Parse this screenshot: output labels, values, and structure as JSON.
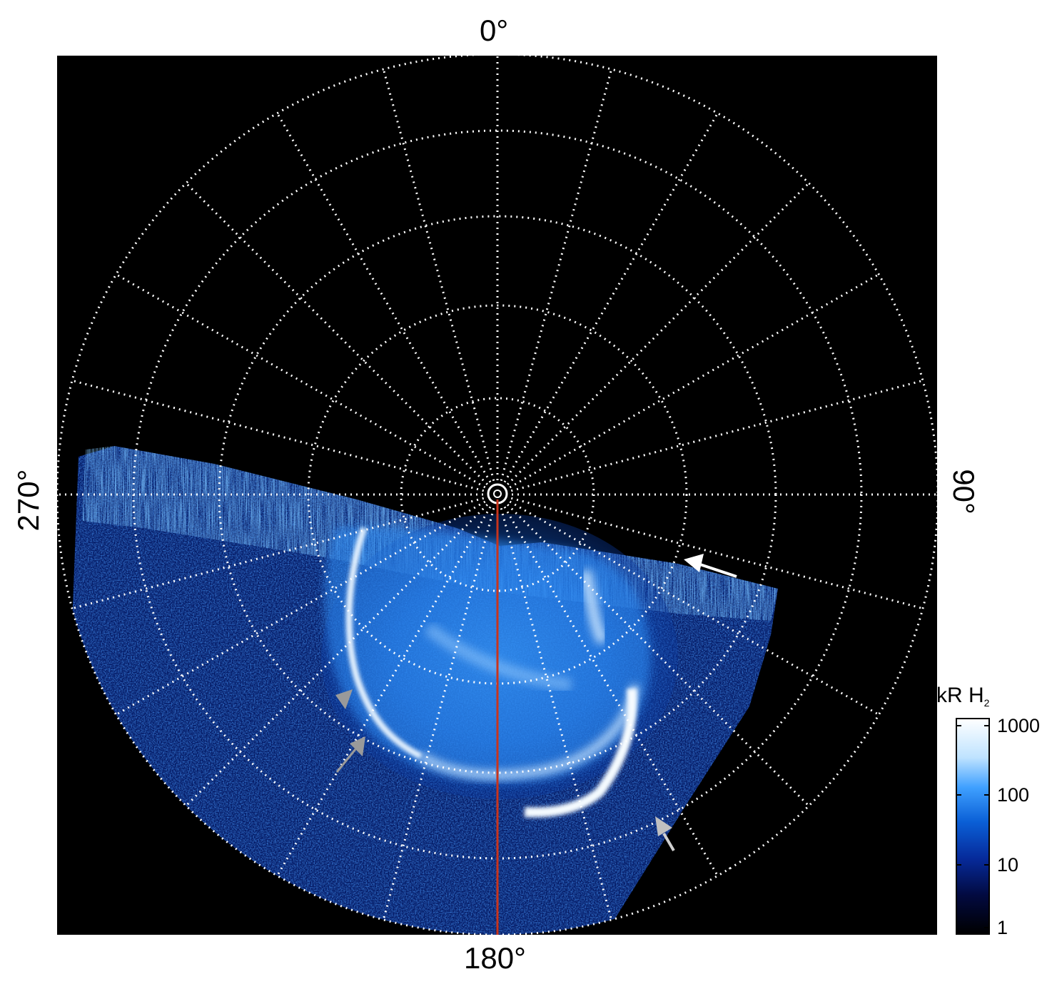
{
  "longitude_labels": {
    "top": "0°",
    "right": "90°",
    "bottom": "180°",
    "left": "270°"
  },
  "colorbar": {
    "title": "kR H",
    "title_subscript": "2",
    "scale": "log",
    "ticks": [
      "1000",
      "100",
      "10",
      "1"
    ],
    "colors": [
      "#ffffff",
      "#bfe3ff",
      "#3fa0ff",
      "#0a5fd6",
      "#062a9a",
      "#020a40",
      "#000000"
    ]
  },
  "colors": {
    "background": "#000000",
    "grid": "#ffffff",
    "meridian_line": "#c9341c",
    "arrow_white": "#ffffff",
    "arrow_grey": "#999999"
  }
}
